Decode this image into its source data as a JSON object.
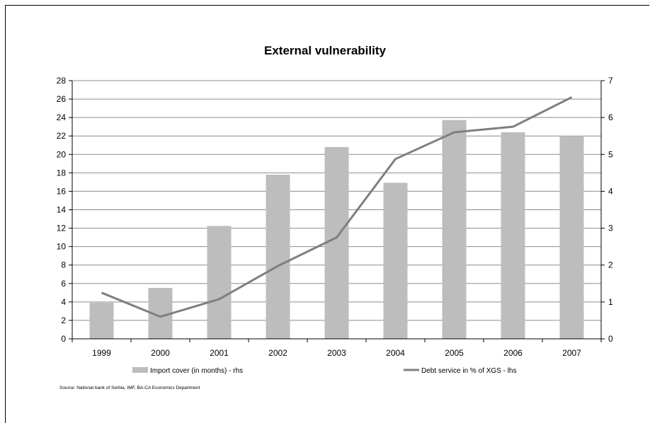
{
  "chart_data": {
    "type": "bar",
    "title": "External vulnerability",
    "categories": [
      "1999",
      "2000",
      "2001",
      "2002",
      "2003",
      "2004",
      "2005",
      "2006",
      "2007"
    ],
    "left_axis": {
      "ylim": [
        0,
        28
      ],
      "ticks": [
        "0",
        "2",
        "4",
        "6",
        "8",
        "10",
        "12",
        "14",
        "16",
        "18",
        "20",
        "22",
        "24",
        "26",
        "28"
      ]
    },
    "right_axis": {
      "ylim": [
        0,
        7
      ],
      "ticks": [
        "0",
        "1",
        "2",
        "3",
        "4",
        "5",
        "6",
        "7"
      ]
    },
    "series": [
      {
        "name": "Import cover (in months) - rhs",
        "type": "bar",
        "axis": "right",
        "color": "#bdbdbe",
        "values": [
          0.98,
          1.38,
          3.06,
          4.45,
          5.2,
          4.23,
          5.93,
          5.6,
          5.5
        ]
      },
      {
        "name": "Debt service in % of XGS - lhs",
        "type": "line",
        "axis": "left",
        "color": "#7f7f7f",
        "values": [
          5.0,
          2.4,
          4.3,
          7.9,
          11.0,
          19.5,
          22.4,
          23.0,
          26.2
        ]
      }
    ],
    "legend_position": "bottom",
    "source": "Source: National bank of Serbia, IMF, BA-CA Economics Department"
  }
}
